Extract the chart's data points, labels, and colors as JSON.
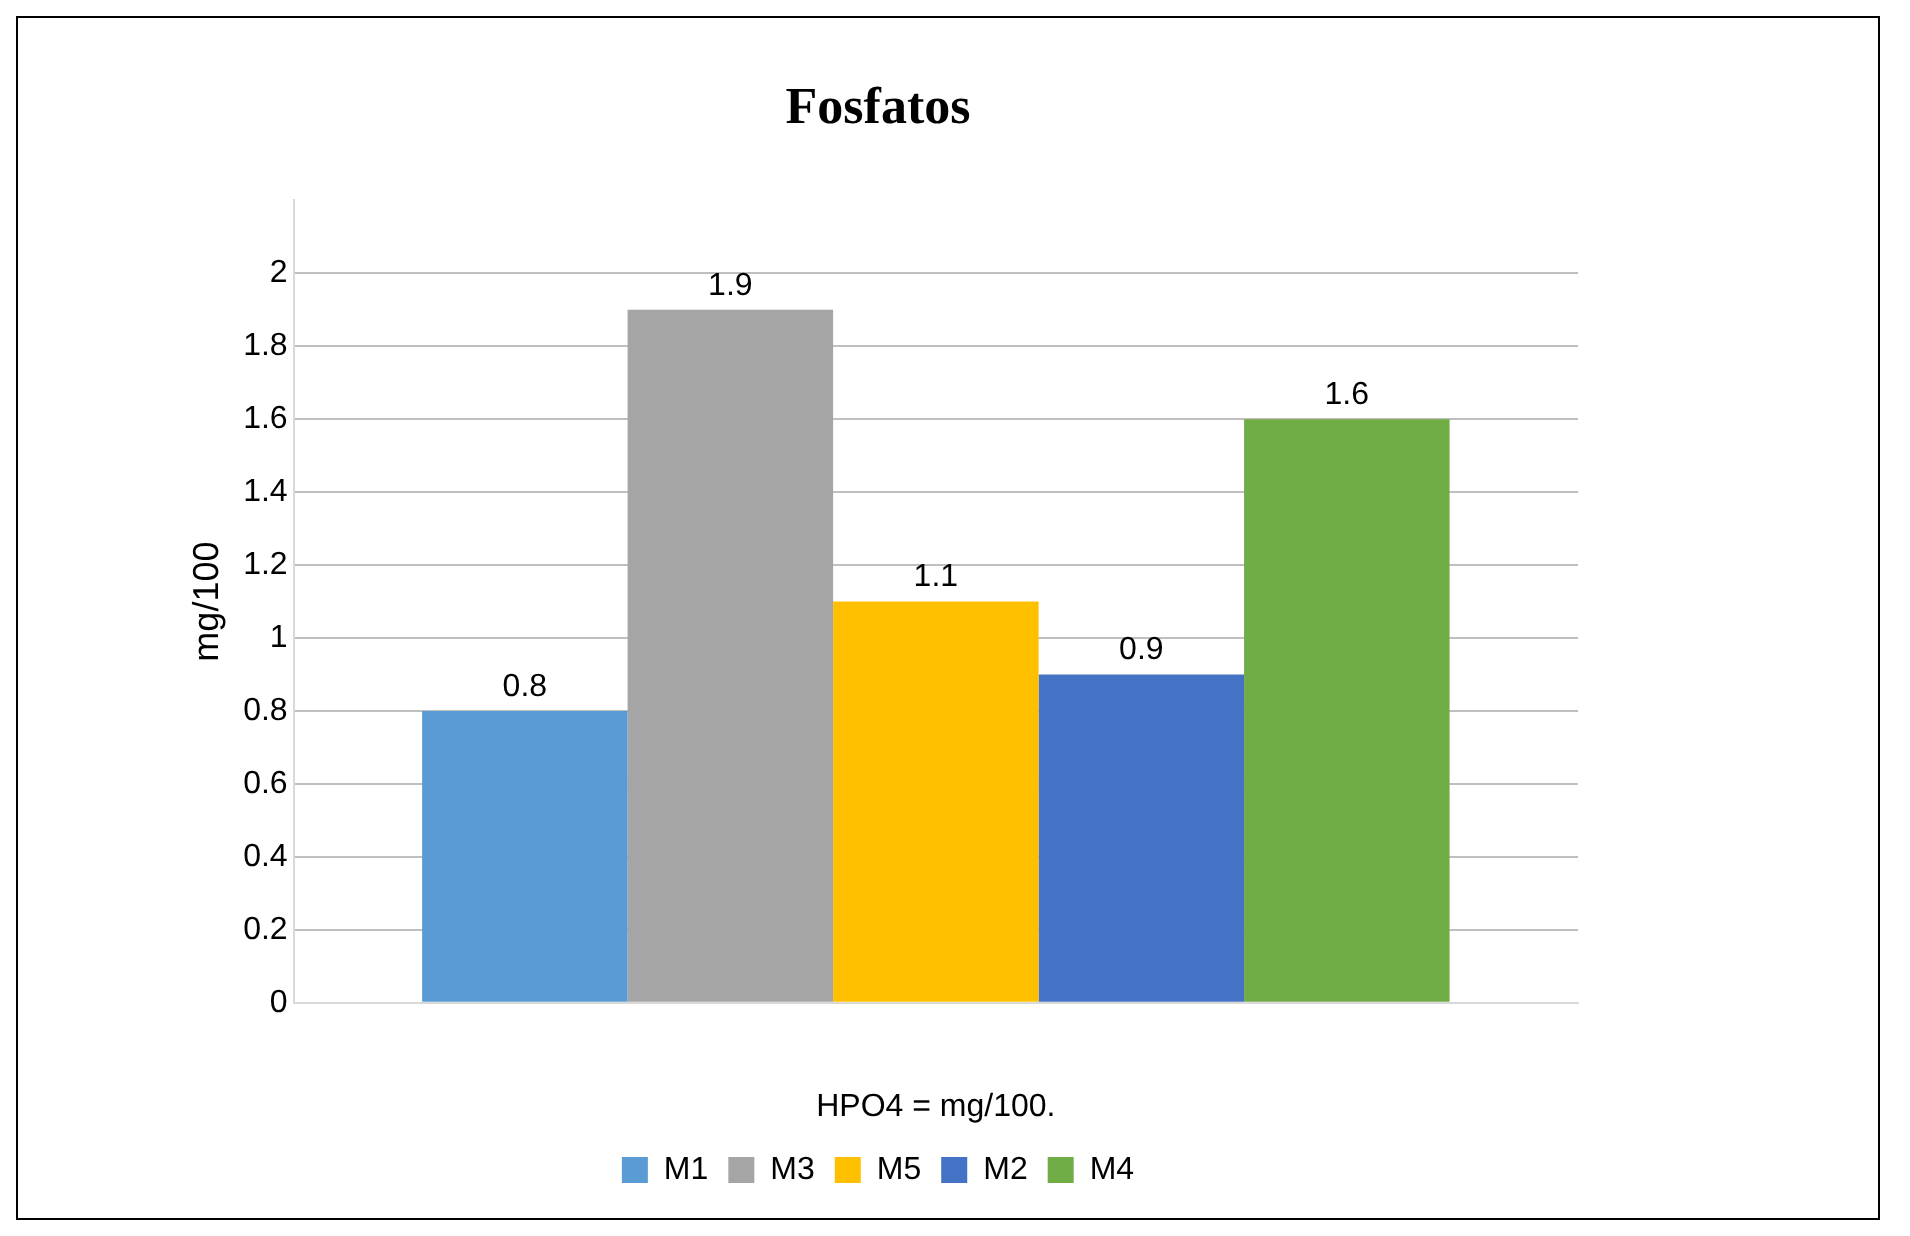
{
  "chart_data": {
    "type": "bar",
    "title": "Fosfatos",
    "xlabel": "HPO4 = mg/100.",
    "ylabel": "mg/100",
    "categories": [
      null
    ],
    "series": [
      {
        "name": "M1",
        "color": "#5b9bd5",
        "values": [
          0.8
        ]
      },
      {
        "name": "M3",
        "color": "#a5a5a5",
        "values": [
          1.9
        ]
      },
      {
        "name": "M5",
        "color": "#ffc000",
        "values": [
          1.1
        ]
      },
      {
        "name": "M2",
        "color": "#4472c4",
        "values": [
          0.9
        ]
      },
      {
        "name": "M4",
        "color": "#70ad47",
        "values": [
          1.6
        ]
      }
    ],
    "ylim": [
      0,
      2.2
    ],
    "yticks": [
      0,
      0.2,
      0.4,
      0.6,
      0.8,
      1,
      1.2,
      1.4,
      1.6,
      1.8,
      2
    ],
    "grid": "y",
    "legend": "bottom",
    "data_labels": true
  }
}
